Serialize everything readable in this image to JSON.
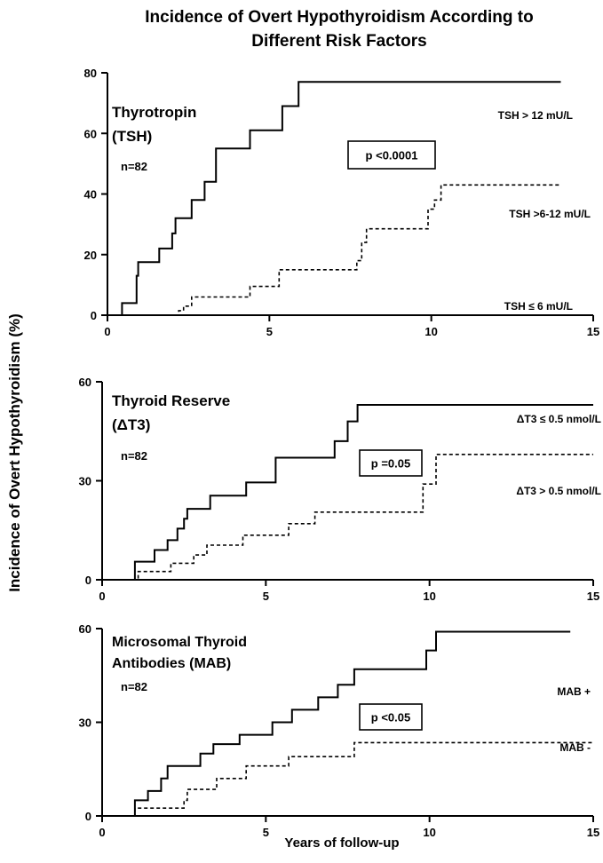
{
  "figure": {
    "title_line1": "Incidence of Overt Hypothyroidism According to",
    "title_line2": "Different Risk Factors",
    "ylabel": "Incidence of Overt Hypothyroidism (%)",
    "xlabel": "Years of follow-up"
  },
  "chart_data": [
    {
      "type": "line",
      "line_shape": "step",
      "title_lines": [
        "Thyrotropin",
        "(TSH)"
      ],
      "n_label": "n=82",
      "p_label": "p <0.0001",
      "xlim": [
        0,
        15
      ],
      "ylim": [
        0,
        80
      ],
      "xticks": [
        0,
        5,
        10,
        15
      ],
      "yticks": [
        0,
        20,
        40,
        60,
        80
      ],
      "series": [
        {
          "name": "TSH > 12 mU/L",
          "style": "solid",
          "x": [
            0,
            0.45,
            0.9,
            0.95,
            1.05,
            1.6,
            2.0,
            2.1,
            2.6,
            3.0,
            3.35,
            4.4,
            5.4,
            5.9,
            6.5,
            14.0
          ],
          "y": [
            0,
            4,
            13,
            17.5,
            17.5,
            22,
            27,
            32,
            38,
            44,
            55,
            61,
            69,
            77,
            77,
            77
          ]
        },
        {
          "name": "TSH >6-12 mU/L",
          "style": "dashed",
          "x": [
            0,
            2.2,
            2.35,
            2.6,
            3.5,
            4.4,
            5.3,
            7.7,
            7.85,
            8.0,
            9.9,
            10.1,
            10.3,
            14.0
          ],
          "y": [
            0,
            1.5,
            3,
            6,
            6,
            9.5,
            15,
            18,
            24,
            28.5,
            35,
            38,
            43,
            43
          ]
        },
        {
          "name": "TSH ≤ 6 mU/L",
          "style": "solid",
          "x": [
            0,
            15
          ],
          "y": [
            0,
            0
          ]
        }
      ]
    },
    {
      "type": "line",
      "line_shape": "step",
      "title_lines": [
        "Thyroid Reserve",
        "(ΔT3)"
      ],
      "n_label": "n=82",
      "p_label": "p =0.05",
      "xlim": [
        0,
        15
      ],
      "ylim": [
        0,
        60
      ],
      "xticks": [
        0,
        5,
        10,
        15
      ],
      "yticks": [
        0,
        30,
        60
      ],
      "series": [
        {
          "name": "ΔT3 ≤ 0.5 nmol/L",
          "style": "solid",
          "x": [
            0,
            1.0,
            1.6,
            2.0,
            2.3,
            2.5,
            2.6,
            3.3,
            4.4,
            5.3,
            7.1,
            7.5,
            7.8,
            15.0
          ],
          "y": [
            0,
            5.5,
            9,
            12,
            15.5,
            18.5,
            21.5,
            25.5,
            29.5,
            37,
            42,
            48,
            53,
            53
          ]
        },
        {
          "name": "ΔT3 > 0.5 nmol/L",
          "style": "dashed",
          "x": [
            0,
            1.1,
            2.1,
            2.8,
            3.2,
            4.3,
            5.7,
            6.5,
            9.8,
            10.0,
            10.2,
            15.0
          ],
          "y": [
            0,
            2.5,
            5,
            7.5,
            10.5,
            13.5,
            17,
            20.5,
            29,
            29,
            38,
            38
          ]
        }
      ]
    },
    {
      "type": "line",
      "line_shape": "step",
      "title_lines": [
        "Microsomal Thyroid",
        "Antibodies (MAB)"
      ],
      "n_label": "n=82",
      "p_label": "p <0.05",
      "xlim": [
        0,
        15
      ],
      "ylim": [
        0,
        60
      ],
      "xticks": [
        0,
        5,
        10,
        15
      ],
      "yticks": [
        0,
        30,
        60
      ],
      "series": [
        {
          "name": "MAB +",
          "style": "solid",
          "x": [
            0,
            1.0,
            1.4,
            1.8,
            2.0,
            2.2,
            3.0,
            3.4,
            4.2,
            5.2,
            5.8,
            6.6,
            7.2,
            7.7,
            9.9,
            10.2,
            14.3
          ],
          "y": [
            0,
            5,
            8,
            12,
            16,
            16,
            20,
            23,
            26,
            30,
            34,
            38,
            42,
            47,
            53,
            59,
            59
          ]
        },
        {
          "name": "MAB -",
          "style": "dashed",
          "x": [
            0,
            1.0,
            2.5,
            2.6,
            3.5,
            4.4,
            5.7,
            7.6,
            7.7,
            15.0
          ],
          "y": [
            0,
            2.5,
            5,
            8.5,
            12,
            16,
            19,
            19,
            23.5,
            23.5
          ]
        }
      ]
    }
  ]
}
